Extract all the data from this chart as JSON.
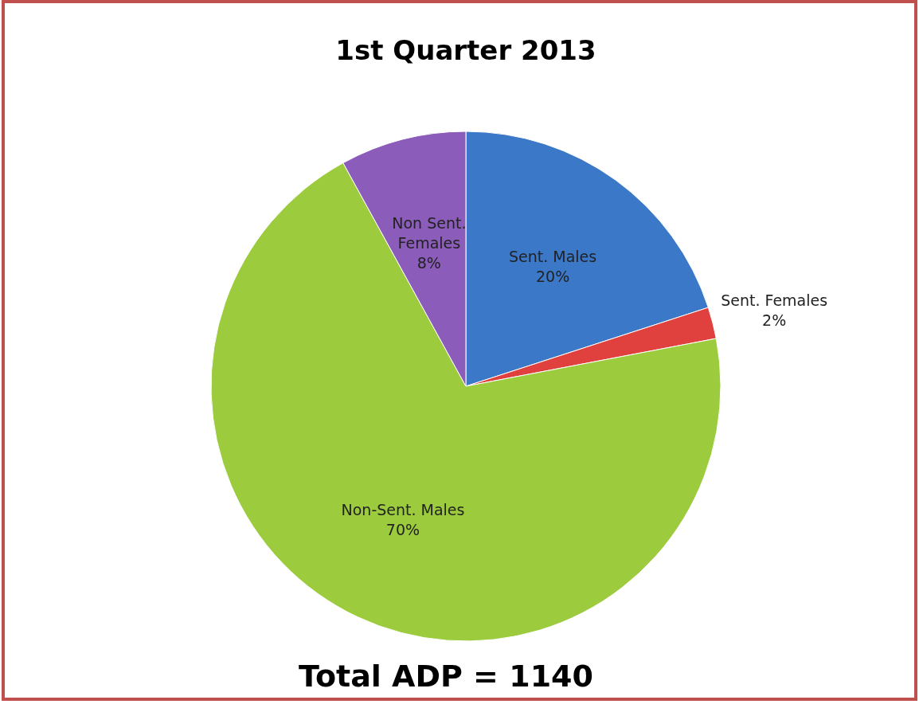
{
  "chart_data": {
    "type": "pie",
    "title": "1st Quarter 2013",
    "categories": [
      "Sent. Males",
      "Sent. Females",
      "Non-Sent. Males",
      "Non Sent. Females"
    ],
    "values": [
      20,
      2,
      70,
      8
    ],
    "value_labels": [
      "20%",
      "2%",
      "70%",
      "8%"
    ],
    "colors": [
      "#3b78c8",
      "#e0413e",
      "#9ccb3d",
      "#8b5cb9"
    ],
    "annotations": [
      "Total ADP = 1140"
    ]
  }
}
